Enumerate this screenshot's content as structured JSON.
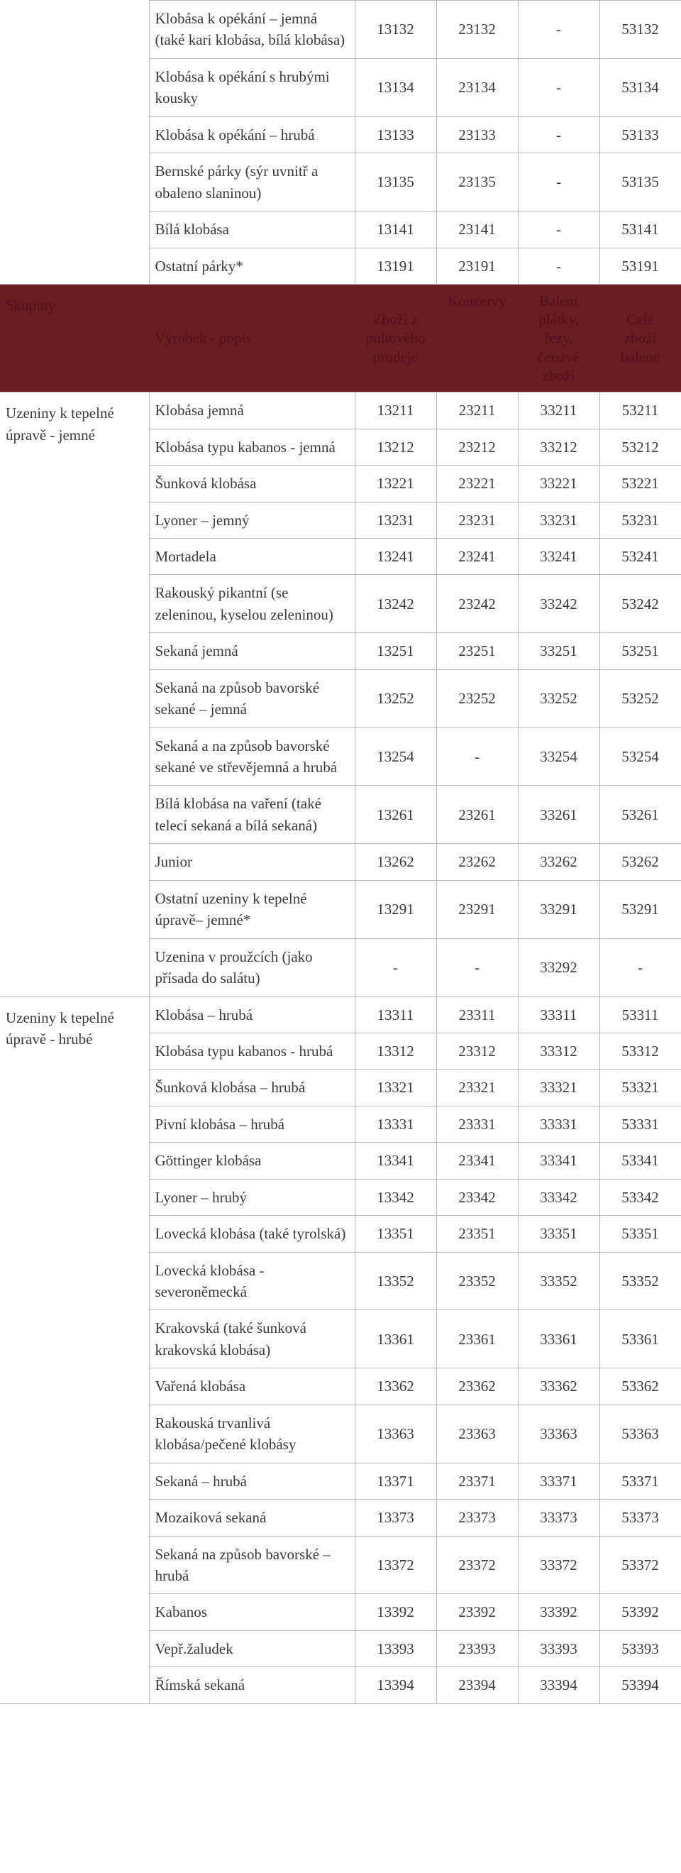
{
  "section1": {
    "rows": [
      {
        "desc": "Klobása k opékání – jemná (také kari klobása, bílá klobása)",
        "c1": "13132",
        "c2": "23132",
        "c3": "-",
        "c4": "53132"
      },
      {
        "desc": "Klobása k opékání s hrubými kousky",
        "c1": "13134",
        "c2": "23134",
        "c3": "-",
        "c4": "53134"
      },
      {
        "desc": "Klobása k opékání – hrubá",
        "c1": "13133",
        "c2": "23133",
        "c3": "-",
        "c4": "53133"
      },
      {
        "desc": "Bernské párky (sýr uvnitř a obaleno slaninou)",
        "c1": "13135",
        "c2": "23135",
        "c3": "-",
        "c4": "53135"
      },
      {
        "desc": "Bílá klobása",
        "c1": "13141",
        "c2": "23141",
        "c3": "-",
        "c4": "53141"
      },
      {
        "desc": "Ostatní párky*",
        "c1": "13191",
        "c2": "23191",
        "c3": "-",
        "c4": "53191"
      }
    ]
  },
  "header": {
    "group": "Skupiny",
    "product": "Výrobek - popis",
    "col1a": "Zboží z",
    "col1b": "pultového",
    "col1c": "prodeje",
    "col2": "Konzervy",
    "col3a": "Balení",
    "col3b": "plátky, řezy,",
    "col3c": "čerstvé zboží",
    "col4a": "Celé",
    "col4b": "zboží",
    "col4c": "balené"
  },
  "section2": {
    "group": "Uzeniny k tepelné úpravě - jemné",
    "rows": [
      {
        "desc": "Klobása jemná",
        "c1": "13211",
        "c2": "23211",
        "c3": "33211",
        "c4": "53211"
      },
      {
        "desc": "Klobása typu kabanos - jemná",
        "c1": "13212",
        "c2": "23212",
        "c3": "33212",
        "c4": "53212"
      },
      {
        "desc": "Šunková klobása",
        "c1": "13221",
        "c2": "23221",
        "c3": "33221",
        "c4": "53221"
      },
      {
        "desc": "Lyoner – jemný",
        "c1": "13231",
        "c2": "23231",
        "c3": "33231",
        "c4": "53231"
      },
      {
        "desc": "Mortadela",
        "c1": "13241",
        "c2": "23241",
        "c3": "33241",
        "c4": "53241"
      },
      {
        "desc": "Rakouský pikantní (se zeleninou, kyselou zeleninou)",
        "c1": "13242",
        "c2": "23242",
        "c3": "33242",
        "c4": "53242"
      },
      {
        "desc": "Sekaná jemná",
        "c1": "13251",
        "c2": "23251",
        "c3": "33251",
        "c4": "53251"
      },
      {
        "desc": "Sekaná na způsob bavorské sekané – jemná",
        "c1": "13252",
        "c2": "23252",
        "c3": "33252",
        "c4": "53252"
      },
      {
        "desc": "Sekaná a na způsob bavorské sekané ve střevějemná a hrubá",
        "c1": "13254",
        "c2": "-",
        "c3": "33254",
        "c4": "53254"
      },
      {
        "desc": "Bílá klobása na vaření (také telecí sekaná a bílá sekaná)",
        "c1": "13261",
        "c2": "23261",
        "c3": "33261",
        "c4": "53261"
      },
      {
        "desc": "Junior",
        "c1": "13262",
        "c2": "23262",
        "c3": "33262",
        "c4": "53262"
      },
      {
        "desc": "Ostatní uzeniny k tepelné úpravě– jemné*",
        "c1": "13291",
        "c2": "23291",
        "c3": "33291",
        "c4": "53291"
      },
      {
        "desc": "Uzenina v proužcích (jako přísada do salátu)",
        "c1": "-",
        "c2": "-",
        "c3": "33292",
        "c4": "-"
      }
    ]
  },
  "section3": {
    "group": "Uzeniny k tepelné úpravě - hrubé",
    "rows": [
      {
        "desc": "Klobása – hrubá",
        "c1": "13311",
        "c2": "23311",
        "c3": "33311",
        "c4": "53311"
      },
      {
        "desc": "Klobása typu kabanos - hrubá",
        "c1": "13312",
        "c2": "23312",
        "c3": "33312",
        "c4": "53312"
      },
      {
        "desc": "Šunková klobása – hrubá",
        "c1": "13321",
        "c2": "23321",
        "c3": "33321",
        "c4": "53321"
      },
      {
        "desc": "Pivní klobása – hrubá",
        "c1": "13331",
        "c2": "23331",
        "c3": "33331",
        "c4": "53331"
      },
      {
        "desc": "Göttinger klobása",
        "c1": "13341",
        "c2": "23341",
        "c3": "33341",
        "c4": "53341"
      },
      {
        "desc": "Lyoner – hrubý",
        "c1": "13342",
        "c2": "23342",
        "c3": "33342",
        "c4": "53342"
      },
      {
        "desc": "Lovecká klobása (také tyrolská)",
        "c1": "13351",
        "c2": "23351",
        "c3": "33351",
        "c4": "53351"
      },
      {
        "desc": "Lovecká klobása - severoněmecká",
        "c1": "13352",
        "c2": "23352",
        "c3": "33352",
        "c4": "53352"
      },
      {
        "desc": "Krakovská (také šunková krakovská klobása)",
        "c1": "13361",
        "c2": "23361",
        "c3": "33361",
        "c4": "53361"
      },
      {
        "desc": "Vařená klobása",
        "c1": "13362",
        "c2": "23362",
        "c3": "33362",
        "c4": "53362"
      },
      {
        "desc": "Rakouská trvanlivá klobása/pečené klobásy",
        "c1": "13363",
        "c2": "23363",
        "c3": "33363",
        "c4": "53363"
      },
      {
        "desc": "Sekaná – hrubá",
        "c1": "13371",
        "c2": "23371",
        "c3": "33371",
        "c4": "53371"
      },
      {
        "desc": "Mozaiková sekaná",
        "c1": "13373",
        "c2": "23373",
        "c3": "33373",
        "c4": "53373"
      },
      {
        "desc": "Sekaná na způsob bavorské – hrubá",
        "c1": "13372",
        "c2": "23372",
        "c3": "33372",
        "c4": "53372"
      },
      {
        "desc": "Kabanos",
        "c1": "13392",
        "c2": "23392",
        "c3": "33392",
        "c4": "53392"
      },
      {
        "desc": "Vepř.žaludek",
        "c1": "13393",
        "c2": "23393",
        "c3": "33393",
        "c4": "53393"
      },
      {
        "desc": "Římská sekaná",
        "c1": "13394",
        "c2": "23394",
        "c3": "33394",
        "c4": "53394"
      }
    ]
  }
}
